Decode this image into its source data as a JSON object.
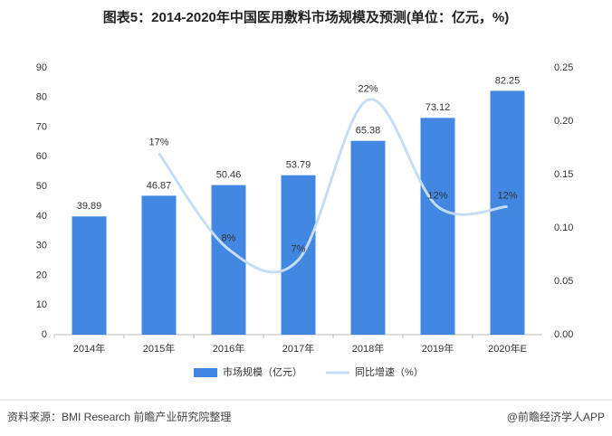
{
  "chart_data": {
    "type": "bar",
    "title": "图表5：2014-2020年中国医用敷料市场规模及预测(单位：亿元，%)",
    "categories": [
      "2014年",
      "2015年",
      "2016年",
      "2017年",
      "2018年",
      "2019年",
      "2020年E"
    ],
    "series": [
      {
        "name": "市场规模（亿元）",
        "type": "bar",
        "color": "#4287e2",
        "values": [
          39.89,
          46.87,
          50.46,
          53.79,
          65.38,
          73.12,
          82.25
        ]
      },
      {
        "name": "同比增速（%）",
        "type": "line",
        "axis": "y2",
        "color": "#c6ddf6",
        "values": [
          null,
          0.17,
          0.08,
          0.07,
          0.22,
          0.12,
          0.12
        ],
        "value_labels": [
          null,
          "17%",
          "8%",
          "7%",
          "22%",
          "12%",
          "12%"
        ]
      }
    ],
    "ylim": [
      0,
      90
    ],
    "yticks": [
      0,
      10,
      20,
      30,
      40,
      50,
      60,
      70,
      80,
      90
    ],
    "y2lim": [
      0,
      0.25
    ],
    "y2ticks": [
      {
        "value": 0,
        "label": "0.00"
      },
      {
        "value": 0.05,
        "label": "0.05"
      },
      {
        "value": 0.1,
        "label": "0.10"
      },
      {
        "value": 0.15,
        "label": "0.15"
      },
      {
        "value": 0.2,
        "label": "0.20"
      },
      {
        "value": 0.25,
        "label": "0.25"
      }
    ],
    "grid": false,
    "legend": "bottom",
    "source": "资料来源：BMI Research 前瞻产业研究院整理",
    "credit": "@前瞻经济学人APP"
  }
}
